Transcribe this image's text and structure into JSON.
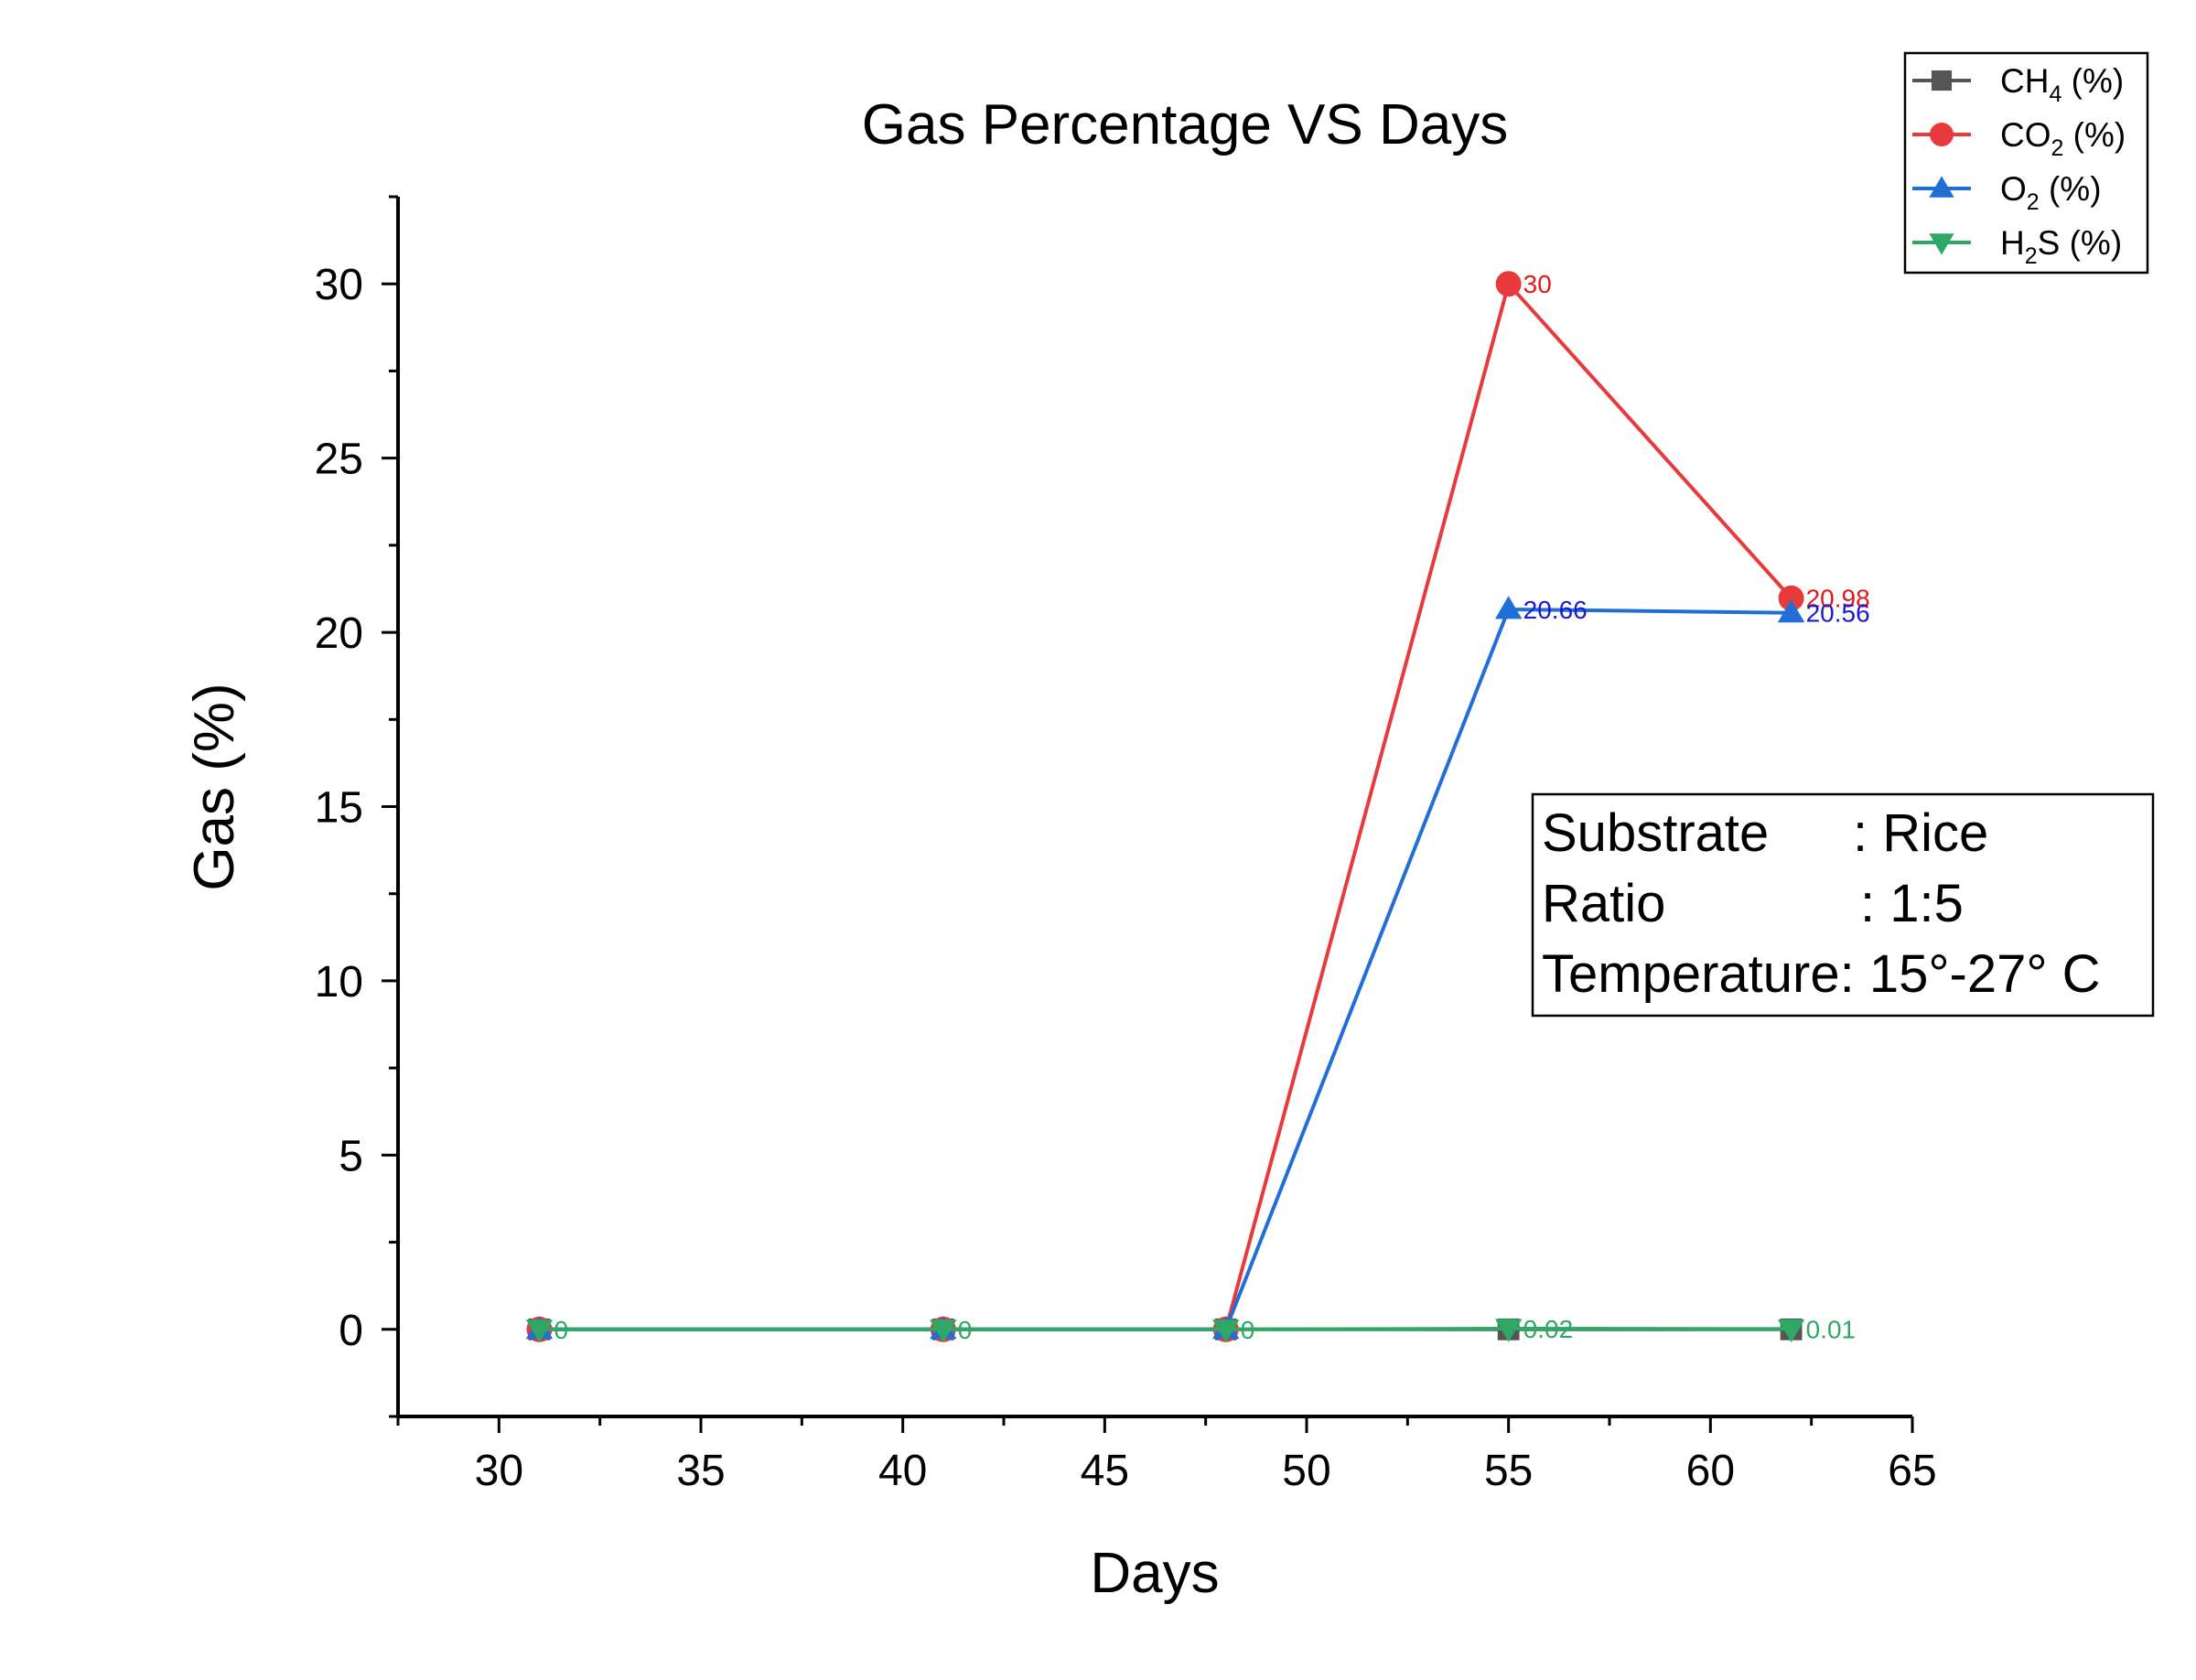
{
  "chart_data": {
    "type": "line",
    "title": "Gas Percentage VS Days",
    "xlabel": "Days",
    "ylabel": "Gas (%)",
    "xlim": [
      27.5,
      65
    ],
    "ylim": [
      -2.5,
      32.5
    ],
    "x_ticks": [
      30,
      35,
      40,
      45,
      50,
      55,
      60,
      65
    ],
    "y_ticks": [
      0,
      5,
      10,
      15,
      20,
      25,
      30
    ],
    "x_tick_labels": [
      "30",
      "35",
      "40",
      "45",
      "50",
      "55",
      "60",
      "65"
    ],
    "y_tick_labels": [
      "0",
      "5",
      "10",
      "15",
      "20",
      "25",
      "30"
    ],
    "legend_position": "top-right",
    "grid": false,
    "x": [
      31,
      41,
      48,
      55,
      62
    ],
    "series": [
      {
        "name": "CH4 (%)",
        "legend_main": "CH",
        "legend_sub": "4",
        "legend_tail": " (%)",
        "marker": "square",
        "color": "#555555",
        "label_color": "#555555",
        "values": [
          0,
          0,
          0,
          0,
          0
        ],
        "point_labels": [
          "",
          "",
          "",
          "",
          ""
        ]
      },
      {
        "name": "CO2 (%)",
        "legend_main": "CO",
        "legend_sub": "2",
        "legend_tail": " (%)",
        "marker": "circle",
        "color": "#e83a3a",
        "label_color": "#e01a1a",
        "values": [
          0,
          0,
          0,
          30,
          20.98
        ],
        "point_labels": [
          "",
          "",
          "",
          "30",
          "20.98"
        ]
      },
      {
        "name": "O2 (%)",
        "legend_main": "O",
        "legend_sub": "2",
        "legend_tail": " (%)",
        "marker": "triangle-up",
        "color": "#1f6fd6",
        "label_color": "#1a1ad6",
        "values": [
          0,
          0,
          0,
          20.66,
          20.56
        ],
        "point_labels": [
          "",
          "",
          "",
          "20.66",
          "20.56"
        ]
      },
      {
        "name": "H2S (%)",
        "legend_main": "H",
        "legend_sub": "2",
        "legend_tail": "S (%)",
        "marker": "triangle-down",
        "color": "#2fa866",
        "label_color": "#2fa866",
        "values": [
          0,
          0,
          0,
          0.02,
          0.01
        ],
        "point_labels": [
          "0",
          "0",
          "0",
          "0.02",
          "0.01"
        ]
      }
    ],
    "info_box": {
      "rows": [
        {
          "key": "Substrate",
          "value": ": Rice"
        },
        {
          "key": "Ratio",
          "value": ": 1:5"
        },
        {
          "key": "Temperature",
          "value": ": 15°-27° C"
        }
      ]
    }
  }
}
